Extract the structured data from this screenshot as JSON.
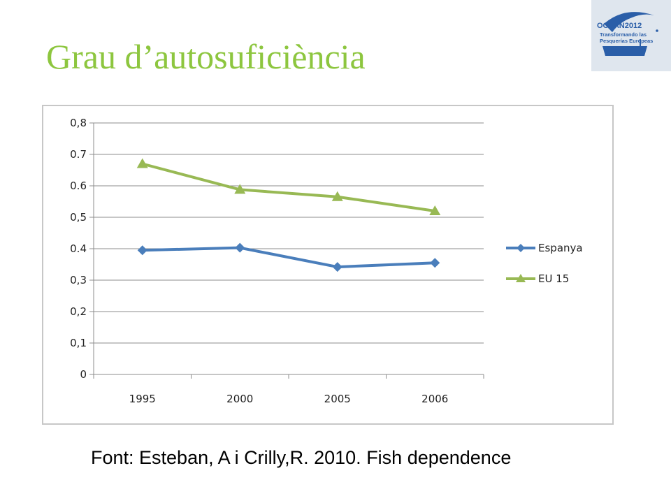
{
  "slide": {
    "title": "Grau d’autosuficiència",
    "source": "Font: Esteban, A i Crilly,R. 2010. Fish dependence"
  },
  "logo": {
    "name": "ocean2012-logo",
    "brand": "OCEAN2012",
    "line1": "Transformando las",
    "line2": "Pesquerías Europeas",
    "colors": {
      "blue": "#2a5ea8",
      "light": "#dfe6ee"
    }
  },
  "chart_data": {
    "type": "line",
    "categories": [
      "1995",
      "2000",
      "2005",
      "2006"
    ],
    "series": [
      {
        "name": "Espanya",
        "values": [
          0.395,
          0.403,
          0.342,
          0.355
        ],
        "color": "#4a7ebb",
        "marker": "diamond"
      },
      {
        "name": "EU 15",
        "values": [
          0.67,
          0.588,
          0.565,
          0.52
        ],
        "color": "#98b954",
        "marker": "triangle"
      }
    ],
    "ylim": [
      0,
      0.8
    ],
    "y_ticks": [
      0,
      0.1,
      0.2,
      0.3,
      0.4,
      0.5,
      0.6,
      0.7,
      0.8
    ],
    "y_tick_labels": [
      "0",
      "0,1",
      "0,2",
      "0,3",
      "0.4",
      "0,5",
      "0.6",
      "0.7",
      "0,8"
    ],
    "grid": true,
    "legend": "right",
    "xlabel": "",
    "ylabel": ""
  }
}
